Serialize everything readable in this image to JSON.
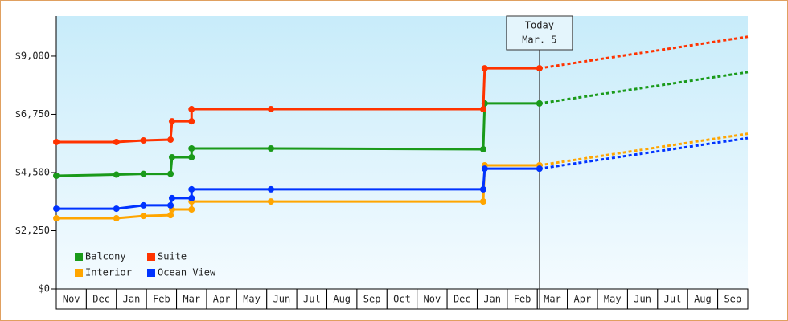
{
  "chart_data": {
    "type": "step-line",
    "x": [
      0,
      2.0,
      2.9,
      3.8,
      3.85,
      4.5,
      4.5,
      7.14,
      14.2,
      14.25,
      16.07,
      23
    ],
    "series": [
      {
        "name": "Balcony",
        "color": "#1a9a1a",
        "values": [
          4375,
          4420,
          4450,
          4450,
          5090,
          5090,
          5430,
          5430,
          5400,
          7170,
          7170,
          8380
        ]
      },
      {
        "name": "Suite",
        "color": "#ff3300",
        "values": [
          5680,
          5680,
          5740,
          5770,
          6480,
          6480,
          6950,
          6950,
          6950,
          8530,
          8530,
          9750
        ]
      },
      {
        "name": "Interior",
        "color": "#ffa500",
        "values": [
          2730,
          2730,
          2820,
          2850,
          3070,
          3070,
          3380,
          3380,
          3380,
          4780,
          4780,
          6000
        ]
      },
      {
        "name": "Ocean View",
        "color": "#0033ff",
        "values": [
          3100,
          3100,
          3230,
          3230,
          3510,
          3510,
          3850,
          3850,
          3850,
          4650,
          4650,
          5830
        ]
      }
    ],
    "today": {
      "x": 16.07,
      "label": [
        "Today",
        "Mar. 5"
      ]
    },
    "xlim": [
      0,
      23
    ],
    "xticks": [
      {
        "value": 0.5,
        "label": "Nov"
      },
      {
        "value": 1.5,
        "label": "Dec"
      },
      {
        "value": 2.5,
        "label": "Jan"
      },
      {
        "value": 3.5,
        "label": "Feb"
      },
      {
        "value": 4.5,
        "label": "Mar"
      },
      {
        "value": 5.5,
        "label": "Apr"
      },
      {
        "value": 6.5,
        "label": "May"
      },
      {
        "value": 7.5,
        "label": "Jun"
      },
      {
        "value": 8.5,
        "label": "Jul"
      },
      {
        "value": 9.5,
        "label": "Aug"
      },
      {
        "value": 10.5,
        "label": "Sep"
      },
      {
        "value": 11.5,
        "label": "Oct"
      },
      {
        "value": 12.5,
        "label": "Nov"
      },
      {
        "value": 13.5,
        "label": "Dec"
      },
      {
        "value": 14.5,
        "label": "Jan"
      },
      {
        "value": 15.5,
        "label": "Feb"
      },
      {
        "value": 16.5,
        "label": "Mar"
      },
      {
        "value": 17.5,
        "label": "Apr"
      },
      {
        "value": 18.5,
        "label": "May"
      },
      {
        "value": 19.5,
        "label": "Jun"
      },
      {
        "value": 20.5,
        "label": "Jul"
      },
      {
        "value": 21.5,
        "label": "Aug"
      },
      {
        "value": 22.5,
        "label": "Sep"
      }
    ],
    "ylim": [
      0,
      10550
    ],
    "yticks": [
      {
        "value": 0,
        "label": "$0"
      },
      {
        "value": 2250,
        "label": "$2,250"
      },
      {
        "value": 4500,
        "label": "$4,500"
      },
      {
        "value": 6750,
        "label": "$6,750"
      },
      {
        "value": 9000,
        "label": "$9,000"
      }
    ],
    "legend": "lower-left"
  }
}
